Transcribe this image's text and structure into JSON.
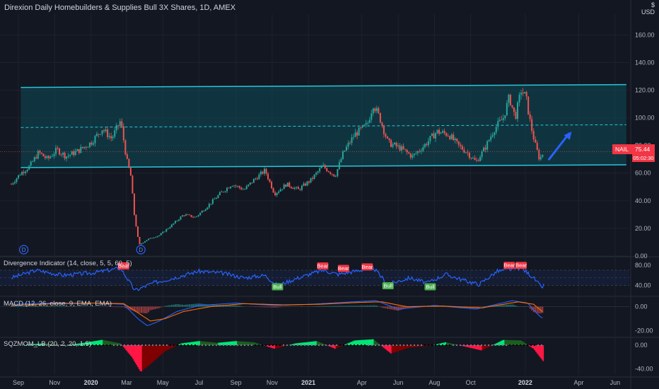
{
  "title": "Direxion Daily Homebuilders & Supplies Bull 3X Shares, 1D, AMEX",
  "currency": "USD",
  "currency_top": "$",
  "price": {
    "symbol": "NAIL",
    "value": "75.44",
    "countdown": "05:02:30",
    "color": "#f23645"
  },
  "colors": {
    "background": "#131722",
    "up": "#26a69a",
    "down": "#ef5350",
    "channel": "#26c6da",
    "channel_fill": "#0e4c58",
    "rsi": "#2962ff",
    "macd": "#2962ff",
    "signal": "#ff6d00",
    "sqz_up": "#00e676",
    "sqz_down": "#ff1744",
    "arrow": "#2962ff",
    "bear_tag": "#f23645",
    "bull_tag": "#4caf50"
  },
  "chart_data": [
    {
      "type": "candlestick",
      "pane": "price",
      "y_ticks": [
        0,
        20,
        40,
        60,
        80,
        100,
        120,
        140,
        160
      ],
      "ylim": [
        0,
        175
      ],
      "x_ticks": [
        "Sep",
        "Nov",
        "2020",
        "Mar",
        "May",
        "Jul",
        "Sep",
        "Nov",
        "2021",
        "Apr",
        "Jun",
        "Aug",
        "Oct",
        "2022",
        "Apr",
        "Jun"
      ],
      "bold_x_ticks": [
        "2020",
        "2021",
        "2022"
      ],
      "series": [
        {
          "name": "NAIL",
          "points": [
            {
              "date": "2019-08-20",
              "close": 52
            },
            {
              "date": "2019-09-05",
              "close": 60
            },
            {
              "date": "2019-09-20",
              "close": 65
            },
            {
              "date": "2019-10-05",
              "close": 75
            },
            {
              "date": "2019-10-20",
              "close": 70
            },
            {
              "date": "2019-11-05",
              "close": 77
            },
            {
              "date": "2019-11-20",
              "close": 72
            },
            {
              "date": "2019-12-10",
              "close": 76
            },
            {
              "date": "2020-01-01",
              "close": 82
            },
            {
              "date": "2020-01-20",
              "close": 92
            },
            {
              "date": "2020-02-05",
              "close": 85
            },
            {
              "date": "2020-02-20",
              "close": 98
            },
            {
              "date": "2020-03-01",
              "close": 70
            },
            {
              "date": "2020-03-08",
              "close": 58
            },
            {
              "date": "2020-03-14",
              "close": 30
            },
            {
              "date": "2020-03-22",
              "close": 8
            },
            {
              "date": "2020-04-05",
              "close": 12
            },
            {
              "date": "2020-04-25",
              "close": 15
            },
            {
              "date": "2020-05-15",
              "close": 22
            },
            {
              "date": "2020-06-05",
              "close": 30
            },
            {
              "date": "2020-06-25",
              "close": 28
            },
            {
              "date": "2020-07-15",
              "close": 36
            },
            {
              "date": "2020-08-05",
              "close": 45
            },
            {
              "date": "2020-08-25",
              "close": 52
            },
            {
              "date": "2020-09-15",
              "close": 48
            },
            {
              "date": "2020-10-01",
              "close": 55
            },
            {
              "date": "2020-10-20",
              "close": 62
            },
            {
              "date": "2020-11-05",
              "close": 45
            },
            {
              "date": "2020-11-25",
              "close": 52
            },
            {
              "date": "2020-12-15",
              "close": 48
            },
            {
              "date": "2021-01-05",
              "close": 55
            },
            {
              "date": "2021-01-25",
              "close": 65
            },
            {
              "date": "2021-02-15",
              "close": 58
            },
            {
              "date": "2021-03-01",
              "close": 75
            },
            {
              "date": "2021-03-20",
              "close": 88
            },
            {
              "date": "2021-04-10",
              "close": 95
            },
            {
              "date": "2021-04-20",
              "close": 110
            },
            {
              "date": "2021-05-01",
              "close": 100
            },
            {
              "date": "2021-05-15",
              "close": 82
            },
            {
              "date": "2021-06-05",
              "close": 78
            },
            {
              "date": "2021-06-25",
              "close": 72
            },
            {
              "date": "2021-07-15",
              "close": 80
            },
            {
              "date": "2021-08-05",
              "close": 90
            },
            {
              "date": "2021-08-25",
              "close": 88
            },
            {
              "date": "2021-09-10",
              "close": 80
            },
            {
              "date": "2021-09-25",
              "close": 75
            },
            {
              "date": "2021-10-10",
              "close": 68
            },
            {
              "date": "2021-10-25",
              "close": 78
            },
            {
              "date": "2021-11-10",
              "close": 92
            },
            {
              "date": "2021-11-25",
              "close": 100
            },
            {
              "date": "2021-12-05",
              "close": 115
            },
            {
              "date": "2021-12-15",
              "close": 100
            },
            {
              "date": "2021-12-25",
              "close": 120
            },
            {
              "date": "2022-01-02",
              "close": 115
            },
            {
              "date": "2022-01-10",
              "close": 95
            },
            {
              "date": "2022-01-18",
              "close": 80
            },
            {
              "date": "2022-01-25",
              "close": 70
            },
            {
              "date": "2022-02-01",
              "close": 75.44
            }
          ]
        }
      ],
      "annotations": {
        "channel_top": {
          "from_date": "2019-09-05",
          "to_date": "2022-06-20",
          "from_value": 122,
          "to_value": 124
        },
        "channel_bottom": {
          "from_date": "2019-09-05",
          "to_date": "2022-06-20",
          "from_value": 64,
          "to_value": 66
        },
        "channel_mid": {
          "from_date": "2019-09-05",
          "to_date": "2022-06-20",
          "from_value": 93,
          "to_value": 95
        },
        "arrow": {
          "from_date": "2022-02-10",
          "to_date": "2022-03-20",
          "from_value": 70,
          "to_value": 90
        },
        "dividend_markers": [
          {
            "date": "2019-09-10",
            "value": 2,
            "label": "D"
          },
          {
            "date": "2020-03-25",
            "value": 2,
            "label": "D"
          }
        ]
      }
    },
    {
      "type": "line",
      "pane": "divergence",
      "title": "Divergence Indicator (14, close, 5, 5, 60, 5)",
      "y_ticks": [
        40,
        80
      ],
      "ylim": [
        20,
        95
      ],
      "band": [
        40,
        70
      ],
      "series": [
        {
          "name": "RSI",
          "points": [
            {
              "date": "2019-08-20",
              "value": 55
            },
            {
              "date": "2019-10-01",
              "value": 70
            },
            {
              "date": "2019-11-15",
              "value": 60
            },
            {
              "date": "2020-01-05",
              "value": 65
            },
            {
              "date": "2020-02-20",
              "value": 74
            },
            {
              "date": "2020-03-15",
              "value": 30
            },
            {
              "date": "2020-04-15",
              "value": 45
            },
            {
              "date": "2020-05-20",
              "value": 55
            },
            {
              "date": "2020-06-30",
              "value": 68
            },
            {
              "date": "2020-08-10",
              "value": 64
            },
            {
              "date": "2020-09-15",
              "value": 55
            },
            {
              "date": "2020-10-20",
              "value": 60
            },
            {
              "date": "2020-11-10",
              "value": 40
            },
            {
              "date": "2020-12-15",
              "value": 55
            },
            {
              "date": "2021-01-25",
              "value": 70
            },
            {
              "date": "2021-02-20",
              "value": 62
            },
            {
              "date": "2021-03-20",
              "value": 68
            },
            {
              "date": "2021-04-20",
              "value": 75
            },
            {
              "date": "2021-05-15",
              "value": 42
            },
            {
              "date": "2021-06-20",
              "value": 55
            },
            {
              "date": "2021-07-20",
              "value": 45
            },
            {
              "date": "2021-08-20",
              "value": 62
            },
            {
              "date": "2021-09-20",
              "value": 50
            },
            {
              "date": "2021-10-15",
              "value": 42
            },
            {
              "date": "2021-11-15",
              "value": 68
            },
            {
              "date": "2021-12-10",
              "value": 72
            },
            {
              "date": "2021-12-25",
              "value": 75
            },
            {
              "date": "2022-01-15",
              "value": 55
            },
            {
              "date": "2022-01-28",
              "value": 36
            },
            {
              "date": "2022-02-01",
              "value": 40
            }
          ]
        }
      ],
      "tags": [
        {
          "date": "2020-02-25",
          "value": 77,
          "label": "Bear",
          "kind": "bear"
        },
        {
          "date": "2021-01-25",
          "value": 77,
          "label": "Bear",
          "kind": "bear"
        },
        {
          "date": "2021-03-01",
          "value": 72,
          "label": "Bear",
          "kind": "bear"
        },
        {
          "date": "2021-04-10",
          "value": 75,
          "label": "Bear",
          "kind": "bear"
        },
        {
          "date": "2021-12-05",
          "value": 78,
          "label": "Bear",
          "kind": "bear"
        },
        {
          "date": "2021-12-25",
          "value": 78,
          "label": "Bear",
          "kind": "bear"
        },
        {
          "date": "2020-11-10",
          "value": 36,
          "label": "Bull",
          "kind": "bull"
        },
        {
          "date": "2021-05-15",
          "value": 38,
          "label": "Bull",
          "kind": "bull"
        },
        {
          "date": "2021-07-25",
          "value": 36,
          "label": "Bull",
          "kind": "bull"
        }
      ]
    },
    {
      "type": "line",
      "pane": "macd",
      "title": "MACD (12, 26, close, 9, EMA, EMA)",
      "y_ticks": [
        0,
        -20
      ],
      "ylim": [
        -25,
        8
      ],
      "series": [
        {
          "name": "MACD",
          "points": [
            {
              "date": "2019-08-20",
              "value": 2
            },
            {
              "date": "2019-11-01",
              "value": 3
            },
            {
              "date": "2020-01-10",
              "value": 3
            },
            {
              "date": "2020-02-25",
              "value": 2
            },
            {
              "date": "2020-03-20",
              "value": -10
            },
            {
              "date": "2020-04-05",
              "value": -16
            },
            {
              "date": "2020-04-25",
              "value": -12
            },
            {
              "date": "2020-05-25",
              "value": -4
            },
            {
              "date": "2020-07-01",
              "value": 1
            },
            {
              "date": "2020-09-01",
              "value": 3
            },
            {
              "date": "2020-11-05",
              "value": 1
            },
            {
              "date": "2021-01-05",
              "value": 2
            },
            {
              "date": "2021-03-15",
              "value": 4
            },
            {
              "date": "2021-04-25",
              "value": 5
            },
            {
              "date": "2021-06-01",
              "value": -2
            },
            {
              "date": "2021-08-01",
              "value": 1
            },
            {
              "date": "2021-10-10",
              "value": -2
            },
            {
              "date": "2021-12-10",
              "value": 5
            },
            {
              "date": "2022-01-05",
              "value": 3
            },
            {
              "date": "2022-01-25",
              "value": -8
            },
            {
              "date": "2022-02-01",
              "value": -10
            }
          ]
        },
        {
          "name": "Signal",
          "points": [
            {
              "date": "2019-08-20",
              "value": 1
            },
            {
              "date": "2019-11-01",
              "value": 2.5
            },
            {
              "date": "2020-01-10",
              "value": 3
            },
            {
              "date": "2020-02-25",
              "value": 2.5
            },
            {
              "date": "2020-03-20",
              "value": -5
            },
            {
              "date": "2020-04-10",
              "value": -12
            },
            {
              "date": "2020-05-05",
              "value": -10
            },
            {
              "date": "2020-06-05",
              "value": -4
            },
            {
              "date": "2020-07-20",
              "value": 0
            },
            {
              "date": "2020-09-15",
              "value": 2.5
            },
            {
              "date": "2020-11-20",
              "value": 1.5
            },
            {
              "date": "2021-01-20",
              "value": 2
            },
            {
              "date": "2021-03-25",
              "value": 3.5
            },
            {
              "date": "2021-05-05",
              "value": 4
            },
            {
              "date": "2021-06-15",
              "value": 0
            },
            {
              "date": "2021-08-15",
              "value": 0.5
            },
            {
              "date": "2021-10-20",
              "value": -1
            },
            {
              "date": "2021-12-20",
              "value": 4
            },
            {
              "date": "2022-01-15",
              "value": 2
            },
            {
              "date": "2022-02-01",
              "value": -5
            }
          ]
        }
      ]
    },
    {
      "type": "bar",
      "pane": "sqzmom",
      "title": "SQZMOM_LB (20, 2, 20, 1.5)",
      "y_ticks": [
        0,
        -40
      ],
      "ylim": [
        -50,
        12
      ],
      "series": [
        {
          "name": "momentum",
          "points": [
            {
              "date": "2019-09-10",
              "value": 1
            },
            {
              "date": "2019-10-15",
              "value": 3
            },
            {
              "date": "2019-11-20",
              "value": 0
            },
            {
              "date": "2019-12-20",
              "value": 4
            },
            {
              "date": "2020-01-20",
              "value": 9
            },
            {
              "date": "2020-02-20",
              "value": 3
            },
            {
              "date": "2020-03-10",
              "value": -20
            },
            {
              "date": "2020-03-25",
              "value": -45
            },
            {
              "date": "2020-04-10",
              "value": -32
            },
            {
              "date": "2020-05-05",
              "value": -10
            },
            {
              "date": "2020-06-01",
              "value": 3
            },
            {
              "date": "2020-07-01",
              "value": 7
            },
            {
              "date": "2020-08-01",
              "value": 4
            },
            {
              "date": "2020-09-01",
              "value": 7
            },
            {
              "date": "2020-10-01",
              "value": 5
            },
            {
              "date": "2020-11-05",
              "value": -6
            },
            {
              "date": "2020-12-10",
              "value": 3
            },
            {
              "date": "2021-01-15",
              "value": 7
            },
            {
              "date": "2021-02-15",
              "value": -6
            },
            {
              "date": "2021-03-20",
              "value": 8
            },
            {
              "date": "2021-04-20",
              "value": 10
            },
            {
              "date": "2021-05-20",
              "value": -14
            },
            {
              "date": "2021-06-20",
              "value": -4
            },
            {
              "date": "2021-07-25",
              "value": -1
            },
            {
              "date": "2021-08-20",
              "value": 5
            },
            {
              "date": "2021-09-20",
              "value": -2
            },
            {
              "date": "2021-10-20",
              "value": -9
            },
            {
              "date": "2021-11-25",
              "value": 9
            },
            {
              "date": "2021-12-25",
              "value": 8
            },
            {
              "date": "2022-01-15",
              "value": -6
            },
            {
              "date": "2022-02-01",
              "value": -28
            }
          ]
        }
      ]
    }
  ]
}
